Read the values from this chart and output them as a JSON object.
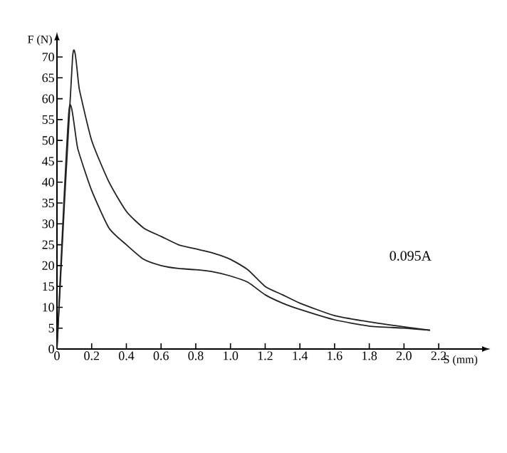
{
  "chart_data": {
    "type": "line",
    "xlabel": "S (mm)",
    "ylabel": "F (N)",
    "annotations": [
      "0.095A"
    ],
    "xlim": [
      0,
      2.45
    ],
    "ylim": [
      0,
      74
    ],
    "xticks": [
      0,
      0.2,
      0.4,
      0.6,
      0.8,
      {
        "value": 1,
        "label": "1.0"
      },
      1.2,
      1.4,
      1.6,
      1.8,
      {
        "value": 2,
        "label": "2.0"
      },
      2.2
    ],
    "yticks": [
      0,
      5,
      10,
      15,
      20,
      25,
      30,
      35,
      40,
      45,
      50,
      55,
      60,
      65,
      70
    ],
    "grid": false,
    "marker": "none",
    "line_style": "solid",
    "series": [
      {
        "color": "#222222",
        "x": [
          0,
          0.09,
          0.13,
          0.2,
          0.3,
          0.4,
          0.5,
          0.6,
          0.7,
          0.8,
          0.9,
          1.0,
          1.1,
          1.2,
          1.3,
          1.4,
          1.6,
          1.8,
          2.0,
          2.15
        ],
        "values": [
          0,
          70,
          62,
          50,
          40,
          33,
          29,
          27,
          25,
          24,
          23,
          21.5,
          19,
          15,
          13,
          11,
          8,
          6.5,
          5.3,
          4.5
        ]
      },
      {
        "color": "#222222",
        "x": [
          0,
          0.07,
          0.12,
          0.2,
          0.3,
          0.4,
          0.5,
          0.6,
          0.7,
          0.8,
          0.9,
          1.0,
          1.1,
          1.2,
          1.3,
          1.4,
          1.6,
          1.8,
          2.0,
          2.15
        ],
        "values": [
          0,
          57.5,
          48,
          38,
          29,
          25,
          21.5,
          20,
          19.3,
          19,
          18.5,
          17.5,
          16,
          13,
          11,
          9.5,
          7,
          5.5,
          5,
          4.5
        ]
      }
    ]
  }
}
